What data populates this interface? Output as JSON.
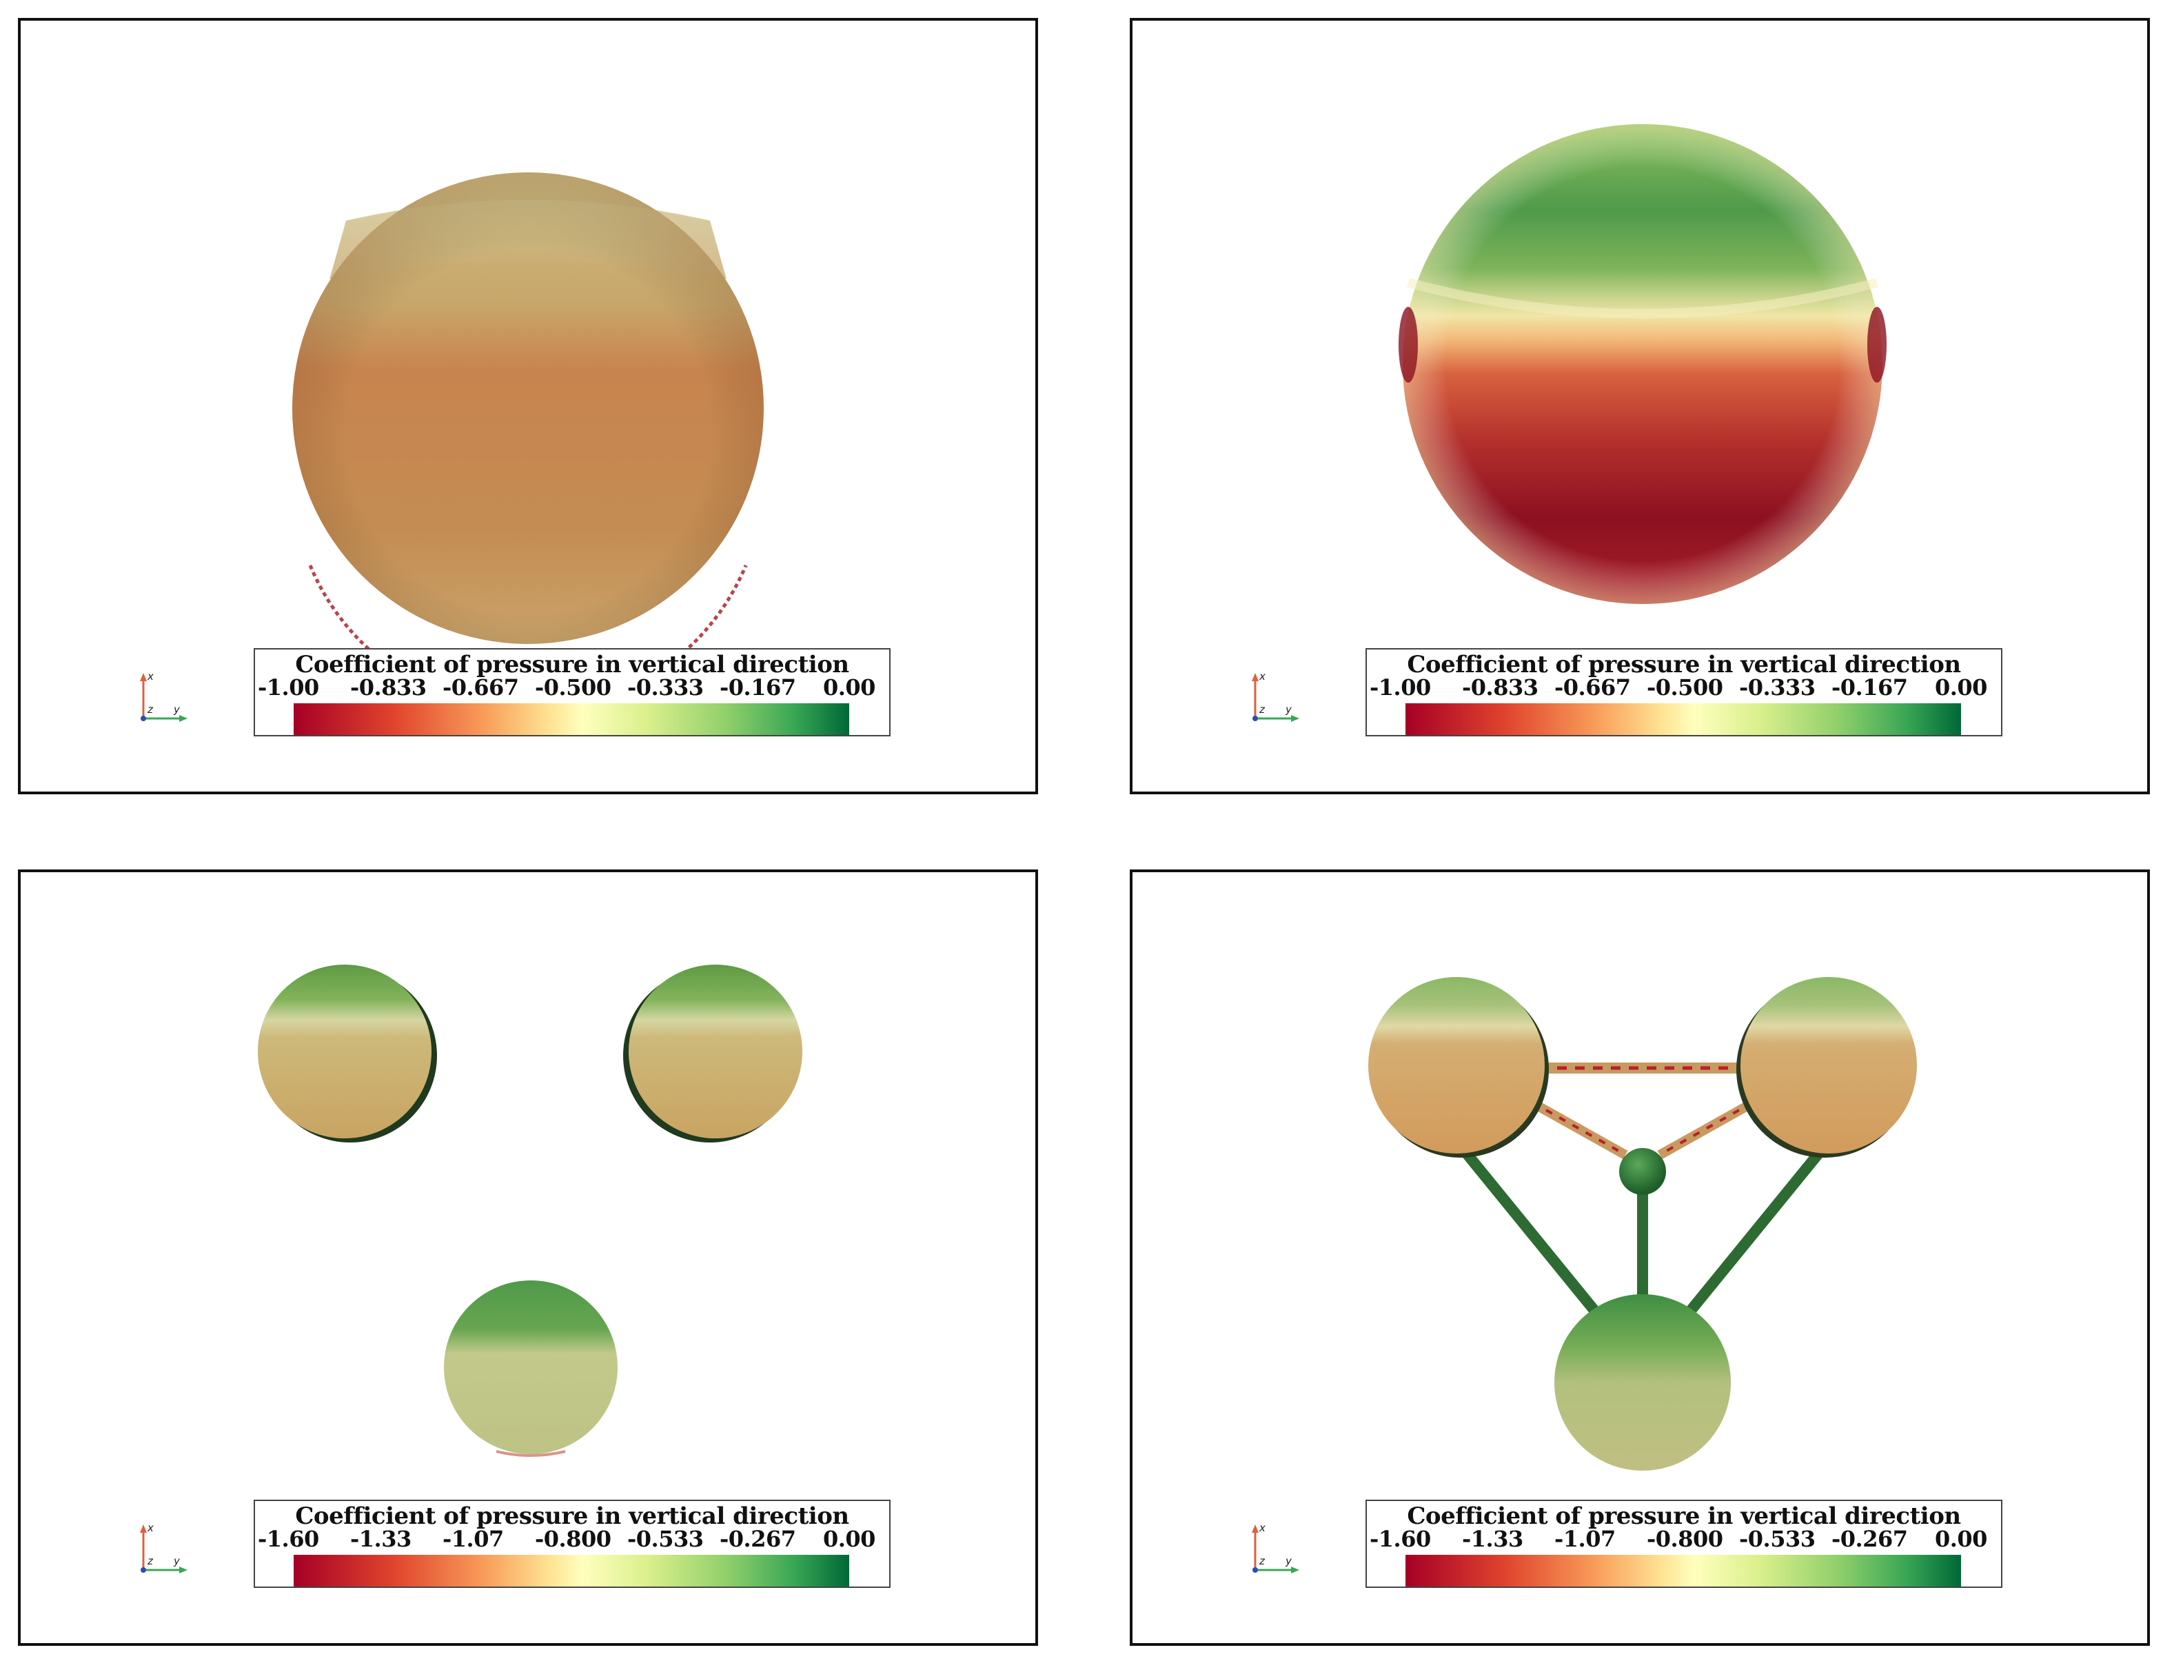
{
  "colors": {
    "frame": "#111111",
    "ramp_low": "#a50026",
    "ramp_mid": "#ffffbe",
    "ramp_high": "#006837"
  },
  "orientation_axes": {
    "x": "x",
    "y": "y",
    "z": "z"
  },
  "panels": [
    {
      "colorbar": {
        "title": "Coefficient of pressure in vertical direction",
        "ticks": [
          "-1.00",
          "-0.833",
          "-0.667",
          "-0.500",
          "-0.333",
          "-0.167",
          "0.00"
        ]
      }
    },
    {
      "colorbar": {
        "title": "Coefficient of pressure in vertical direction",
        "ticks": [
          "-1.00",
          "-0.833",
          "-0.667",
          "-0.500",
          "-0.333",
          "-0.167",
          "0.00"
        ]
      }
    },
    {
      "colorbar": {
        "title": "Coefficient of pressure in vertical direction",
        "ticks": [
          "-1.60",
          "-1.33",
          "-1.07",
          "-0.800",
          "-0.533",
          "-0.267",
          "0.00"
        ]
      }
    },
    {
      "colorbar": {
        "title": "Coefficient of pressure in vertical direction",
        "ticks": [
          "-1.60",
          "-1.33",
          "-1.07",
          "-0.800",
          "-0.533",
          "-0.267",
          "0.00"
        ]
      }
    }
  ]
}
